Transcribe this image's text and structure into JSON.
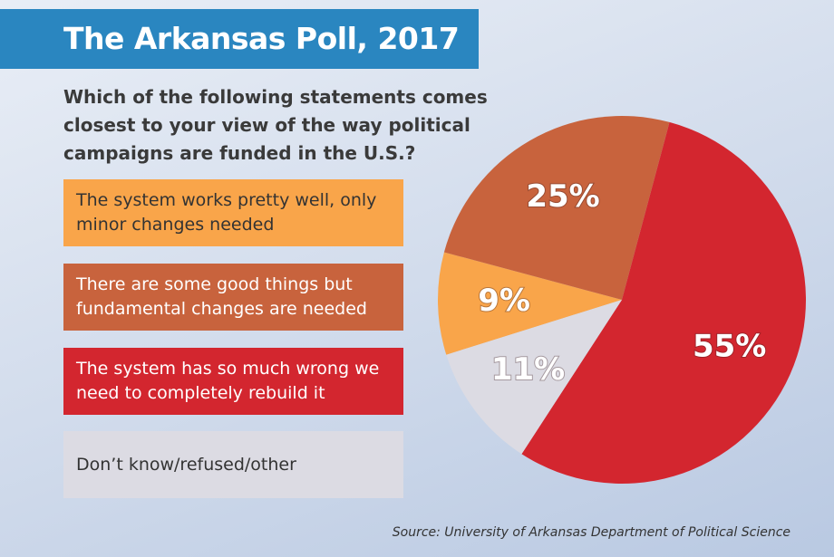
{
  "chart_data": {
    "type": "pie",
    "title": "The Arkansas Poll, 2017",
    "subtitle": "Which of the following statements comes closest to your view of the way political campaigns are funded in the U.S.?",
    "categories": [
      "The system works pretty well, only minor changes needed",
      "There are some good things but fundamental changes are needed",
      "The system has so much wrong we need to completely rebuild it",
      "Don’t know/refused/other"
    ],
    "values": [
      9,
      25,
      55,
      11
    ],
    "value_labels": [
      "9%",
      "25%",
      "55%",
      "11%"
    ],
    "colors": [
      "#f9a54a",
      "#c8633d",
      "#d3262f",
      "#dcdbe3"
    ],
    "source": "Source: University of Arkansas Department of Political Science"
  }
}
